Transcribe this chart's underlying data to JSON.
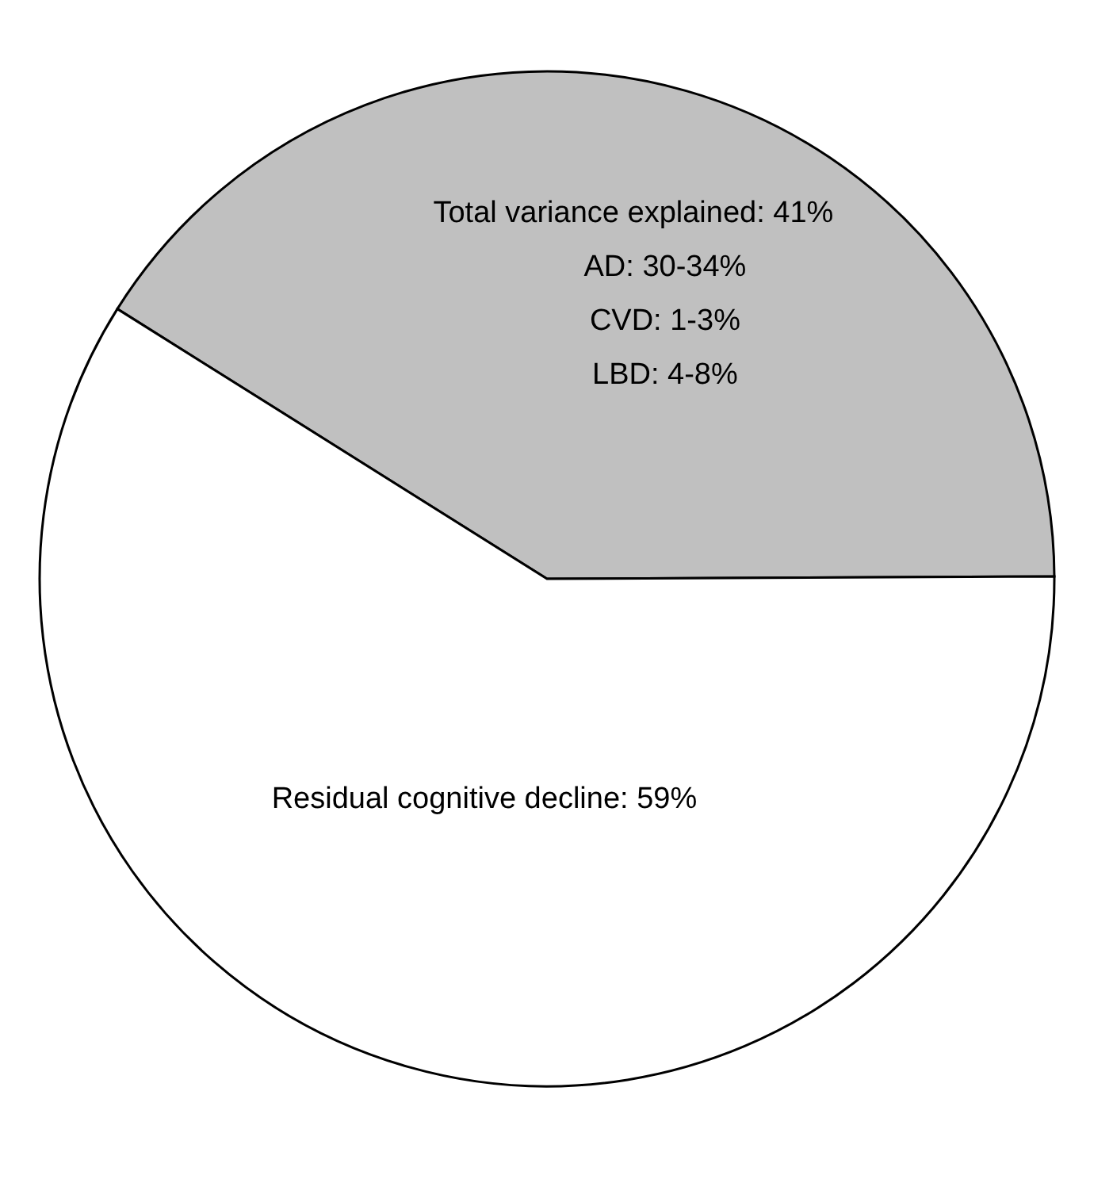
{
  "chart_data": {
    "type": "pie",
    "categories": [
      "Total variance explained: 41%",
      "Residual cognitive decline: 59%"
    ],
    "values": [
      41,
      59
    ],
    "colors": [
      "#c0c0c0",
      "#ffffff"
    ],
    "annotations": [
      "AD: 30-34%",
      "CVD: 1-3%",
      "LBD: 4-8%"
    ],
    "legend": false
  }
}
